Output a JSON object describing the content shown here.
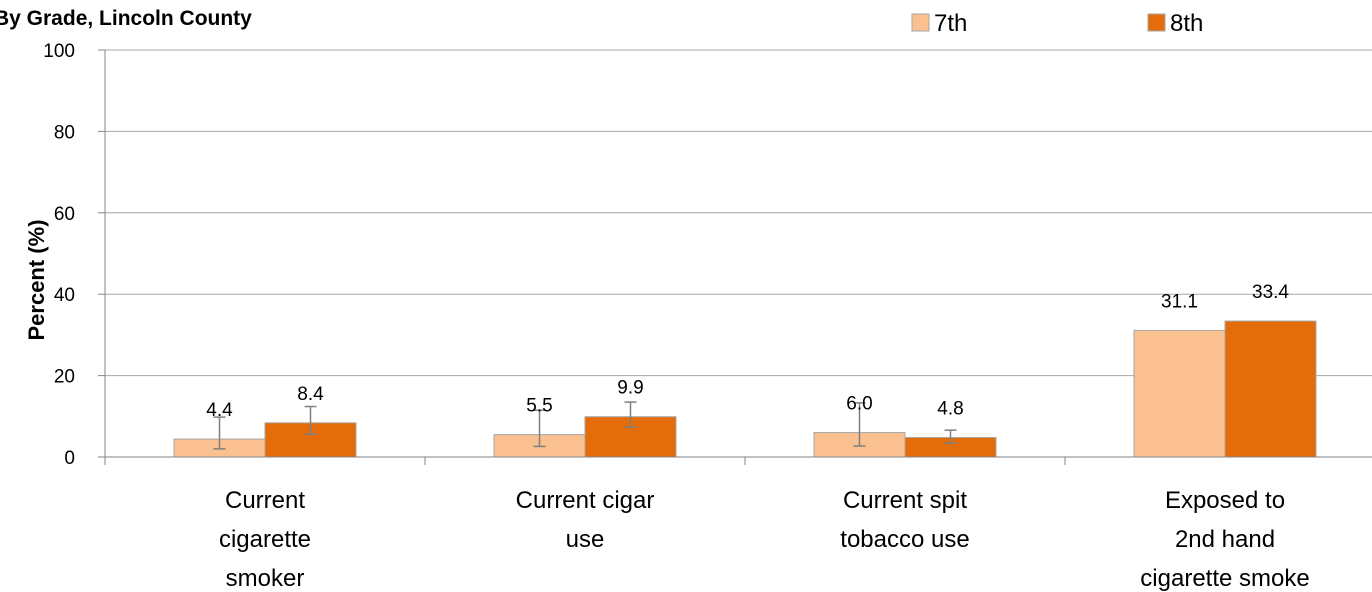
{
  "chart_data": {
    "type": "bar",
    "title": "By Grade, Lincoln County",
    "xlabel": "",
    "ylabel": "Percent (%)",
    "ylim": [
      0,
      100
    ],
    "yticks": [
      0,
      20,
      40,
      60,
      80,
      100
    ],
    "grid": true,
    "legend_position": "top-right",
    "categories": [
      [
        "Current",
        "cigarette",
        "smoker"
      ],
      [
        "Current cigar",
        "use"
      ],
      [
        "Current spit",
        "tobacco use"
      ],
      [
        "Exposed to",
        "2nd hand",
        "cigarette smoke"
      ]
    ],
    "series": [
      {
        "name": "7th",
        "color": "#FAC090",
        "values": [
          4.4,
          5.5,
          6.0,
          31.1
        ],
        "labels": [
          "4.4",
          "5.5",
          "6.0",
          "31.1"
        ],
        "error_low": [
          2.0,
          2.6,
          2.7,
          null
        ],
        "error_high": [
          9.8,
          11.5,
          13.3,
          null
        ]
      },
      {
        "name": "8th",
        "color": "#E46C0A",
        "values": [
          8.4,
          9.9,
          4.8,
          33.4
        ],
        "labels": [
          "8.4",
          "9.9",
          "4.8",
          "33.4"
        ],
        "error_low": [
          5.6,
          7.3,
          3.4,
          null
        ],
        "error_high": [
          12.4,
          13.5,
          6.6,
          null
        ]
      }
    ]
  }
}
